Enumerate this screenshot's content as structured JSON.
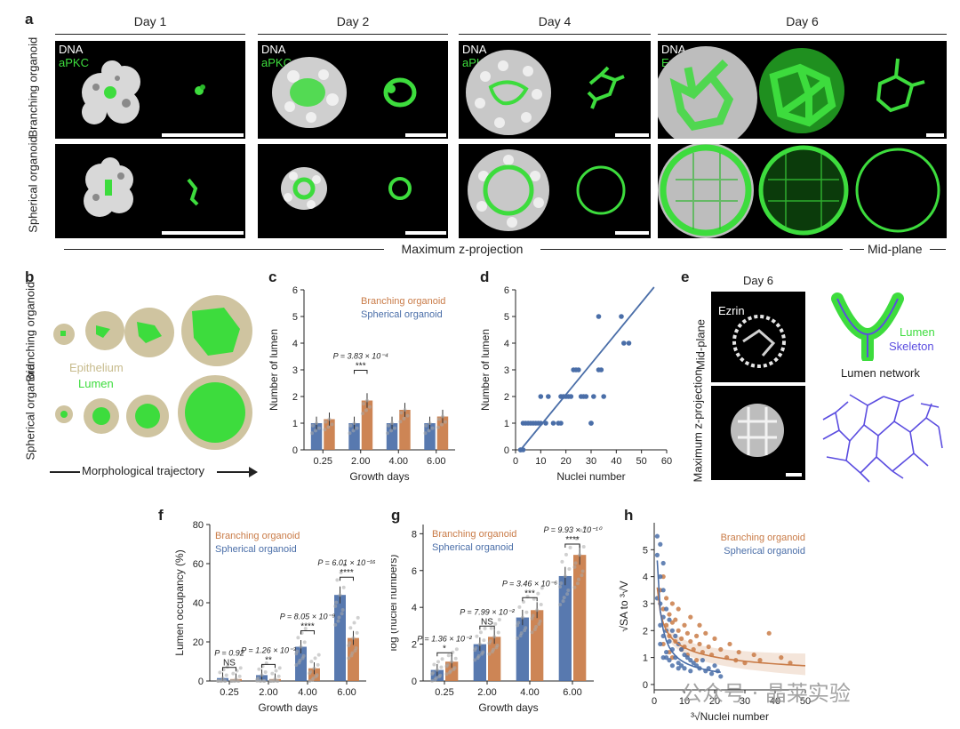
{
  "panel_a": {
    "label": "a",
    "days": [
      "Day 1",
      "Day 2",
      "Day 4",
      "Day 6"
    ],
    "rows": [
      "Branching organoid",
      "Spherical organoid"
    ],
    "stain_dna": "DNA",
    "stain_apkc": "aPKC",
    "stain_ezrin": "Ezrin",
    "footer_left": "Maximum z-projection",
    "footer_right": "Mid-plane"
  },
  "panel_b": {
    "label": "b",
    "rows": [
      "Branching organoid",
      "Spherical organoid"
    ],
    "legend_epithelium": "Epithelium",
    "legend_lumen": "Lumen",
    "arrow_label": "Morphological trajectory"
  },
  "panel_e": {
    "label": "e",
    "day": "Day 6",
    "stain": "Ezrin",
    "rows": [
      "Mid-plane",
      "Maximum z-projection"
    ],
    "legend_lumen": "Lumen",
    "legend_skeleton": "Skeleton",
    "network_label": "Lumen network"
  },
  "colors": {
    "branching": "#c97b47",
    "spherical": "#4a6ea8",
    "lumen": "#3ddc3d",
    "epithelium": "#cfc4a0"
  },
  "chart_data": [
    {
      "panel": "c",
      "type": "bar",
      "categories": [
        "0.25",
        "2.00",
        "4.00",
        "6.00"
      ],
      "series": [
        {
          "name": "Spherical organoid",
          "values": [
            1.0,
            1.0,
            1.0,
            1.0
          ]
        },
        {
          "name": "Branching organoid",
          "values": [
            1.15,
            1.85,
            1.5,
            1.25
          ]
        }
      ],
      "xlabel": "Growth days",
      "ylabel": "Number of lumen",
      "ylim": [
        0,
        6
      ],
      "yticks": [
        "0",
        "1",
        "2",
        "3",
        "4",
        "5",
        "6"
      ],
      "annotations": [
        {
          "text": "P = 3.83 × 10⁻⁴",
          "sig": "***",
          "category": "2.00"
        }
      ]
    },
    {
      "panel": "d",
      "type": "scatter",
      "x": [
        2,
        2,
        3,
        3,
        4,
        5,
        6,
        7,
        8,
        9,
        10,
        10,
        12,
        13,
        15,
        17,
        18,
        18,
        19,
        20,
        21,
        22,
        23,
        24,
        25,
        26,
        27,
        28,
        30,
        30,
        31,
        33,
        33,
        34,
        35,
        42,
        43,
        45
      ],
      "y": [
        0,
        0,
        0,
        1,
        1,
        1,
        1,
        1,
        1,
        1,
        1,
        2,
        1,
        2,
        1,
        1,
        1,
        2,
        2,
        2,
        2,
        2,
        3,
        3,
        3,
        2,
        2,
        2,
        1,
        1,
        2,
        3,
        5,
        3,
        2,
        5,
        4,
        4
      ],
      "fit": {
        "x": [
          2,
          55
        ],
        "y": [
          0,
          6.1
        ]
      },
      "xlabel": "Nuclei number",
      "ylabel": "Number of lumen",
      "xlim": [
        0,
        60
      ],
      "ylim": [
        0,
        6
      ],
      "xticks": [
        "0",
        "10",
        "20",
        "30",
        "40",
        "50",
        "60"
      ],
      "yticks": [
        "0",
        "1",
        "2",
        "3",
        "4",
        "5",
        "6"
      ]
    },
    {
      "panel": "f",
      "type": "bar",
      "categories": [
        "0.25",
        "2.00",
        "4.00",
        "6.00"
      ],
      "series": [
        {
          "name": "Spherical organoid",
          "values": [
            1.5,
            3,
            17.5,
            44
          ]
        },
        {
          "name": "Branching organoid",
          "values": [
            1.0,
            1.0,
            6.5,
            22
          ]
        }
      ],
      "xlabel": "Growth days",
      "ylabel": "Lumen occupancy (%)",
      "ylim": [
        0,
        80
      ],
      "yticks": [
        "0",
        "20",
        "40",
        "60",
        "80"
      ],
      "annotations": [
        {
          "text": "P = 0.92",
          "sig": "NS",
          "category": "0.25"
        },
        {
          "text": "P = 1.26 × 10⁻³",
          "sig": "**",
          "category": "2.00"
        },
        {
          "text": "P = 8.05 × 10⁻⁹",
          "sig": "****",
          "category": "4.00"
        },
        {
          "text": "P = 6.01 × 10⁻¹⁶",
          "sig": "****",
          "category": "6.00"
        }
      ]
    },
    {
      "panel": "g",
      "type": "bar",
      "categories": [
        "0.25",
        "2.00",
        "4.00",
        "6.00"
      ],
      "series": [
        {
          "name": "Spherical organoid",
          "values": [
            0.6,
            2.0,
            3.45,
            5.7
          ]
        },
        {
          "name": "Branching organoid",
          "values": [
            1.05,
            2.4,
            3.85,
            6.85
          ]
        }
      ],
      "xlabel": "Growth days",
      "ylabel": "log (nuclei numbers)",
      "ylim": [
        0,
        8.5
      ],
      "yticks": [
        "0",
        "2",
        "4",
        "6",
        "8"
      ],
      "annotations": [
        {
          "text": "P = 1.36 × 10⁻²",
          "sig": "*",
          "category": "0.25"
        },
        {
          "text": "P = 7.99 × 10⁻²",
          "sig": "NS",
          "category": "2.00"
        },
        {
          "text": "P = 3.46 × 10⁻⁶",
          "sig": "***",
          "category": "4.00"
        },
        {
          "text": "P = 9.93 × 10⁻¹⁰",
          "sig": "****",
          "category": "6.00"
        }
      ]
    },
    {
      "panel": "h",
      "type": "scatter",
      "series": [
        {
          "name": "Branching organoid",
          "x": [
            2,
            3,
            3,
            4,
            4,
            5,
            5,
            6,
            6,
            7,
            7,
            8,
            8,
            9,
            10,
            10,
            11,
            12,
            12,
            13,
            14,
            15,
            15,
            16,
            17,
            18,
            19,
            20,
            22,
            24,
            25,
            27,
            28,
            30,
            33,
            35,
            38,
            42,
            45,
            3,
            5,
            6,
            9,
            11,
            14
          ],
          "y": [
            3.5,
            4.0,
            2.8,
            3.2,
            2.2,
            2.6,
            1.8,
            2.3,
            3.0,
            2.4,
            1.6,
            2.0,
            2.8,
            1.7,
            2.2,
            1.4,
            1.9,
            1.6,
            2.5,
            1.3,
            1.8,
            1.5,
            2.2,
            1.2,
            1.9,
            1.4,
            1.1,
            1.7,
            1.3,
            1.0,
            1.5,
            0.9,
            1.2,
            0.8,
            1.1,
            0.9,
            1.9,
            1.0,
            0.8,
            1.5,
            1.2,
            1.0,
            1.3,
            1.1,
            0.9
          ]
        },
        {
          "name": "Spherical organoid",
          "x": [
            1,
            1,
            1,
            2,
            2,
            2,
            2,
            3,
            3,
            3,
            3,
            4,
            4,
            4,
            5,
            5,
            5,
            6,
            6,
            7,
            7,
            8,
            8,
            9,
            9,
            10,
            10,
            11,
            12,
            12,
            13,
            14,
            15,
            16,
            17,
            18,
            19,
            20,
            21,
            22,
            2,
            3,
            4,
            6,
            8
          ],
          "y": [
            5.5,
            4.8,
            3.2,
            4.0,
            3.0,
            2.2,
            1.5,
            3.5,
            2.5,
            1.8,
            1.0,
            2.8,
            2.0,
            1.2,
            2.4,
            1.6,
            0.9,
            2.0,
            1.3,
            1.8,
            1.0,
            1.5,
            0.8,
            1.3,
            0.7,
            1.1,
            0.6,
            1.0,
            0.9,
            0.5,
            0.8,
            0.7,
            0.6,
            0.9,
            0.5,
            0.6,
            0.4,
            0.7,
            0.5,
            0.3,
            5.2,
            4.5,
            1.0,
            0.7,
            0.6
          ]
        }
      ],
      "xlabel": "³√Nuclei number",
      "ylabel": "√SA to ³√V",
      "xlim": [
        0,
        50
      ],
      "ylim": [
        -0.2,
        6
      ],
      "xticks": [
        "0",
        "10",
        "20",
        "30",
        "40",
        "50"
      ],
      "yticks": [
        "0",
        "1",
        "2",
        "3",
        "4",
        "5"
      ]
    }
  ],
  "watermark": "公众号 · 晶莱实验"
}
